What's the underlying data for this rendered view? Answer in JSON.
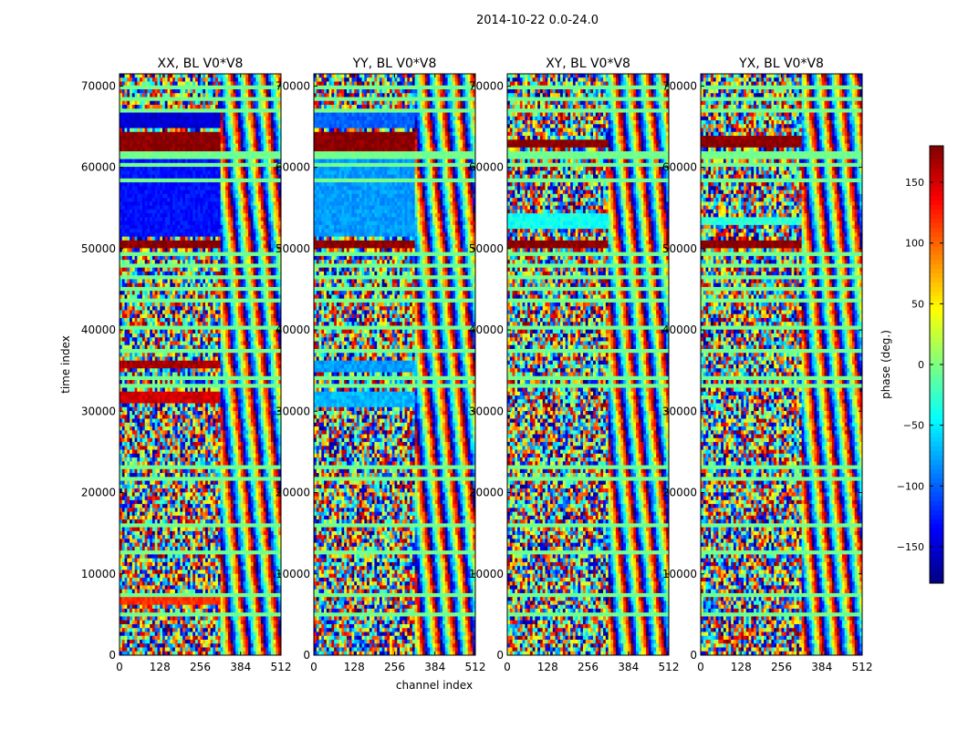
{
  "figure": {
    "suptitle": "2014-10-22 0.0-24.0"
  },
  "chart_data": {
    "type": "heatmap",
    "panels": [
      {
        "title": "XX, BL V0*V8"
      },
      {
        "title": "YY, BL V0*V8"
      },
      {
        "title": "XY, BL V0*V8"
      },
      {
        "title": "YX, BL V0*V8"
      }
    ],
    "xlabel": "channel index",
    "ylabel": "time index",
    "xlim": [
      0,
      512
    ],
    "ylim": [
      0,
      71500
    ],
    "xticks": [
      0,
      128,
      256,
      384,
      512
    ],
    "xtick_labels": [
      "0",
      "128",
      "256",
      "384",
      "512"
    ],
    "yticks": [
      0,
      10000,
      20000,
      30000,
      40000,
      50000,
      60000,
      70000
    ],
    "ytick_labels": [
      "0",
      "10000",
      "20000",
      "30000",
      "40000",
      "50000",
      "60000",
      "70000"
    ],
    "colorbar": {
      "label": "phase (deg.)",
      "range": [
        -180,
        180
      ],
      "ticks": [
        -150,
        -100,
        -50,
        0,
        50,
        100,
        150
      ],
      "tick_labels": [
        "−150",
        "−100",
        "−50",
        "0",
        "50",
        "100",
        "150"
      ],
      "colormap": "jet"
    }
  }
}
